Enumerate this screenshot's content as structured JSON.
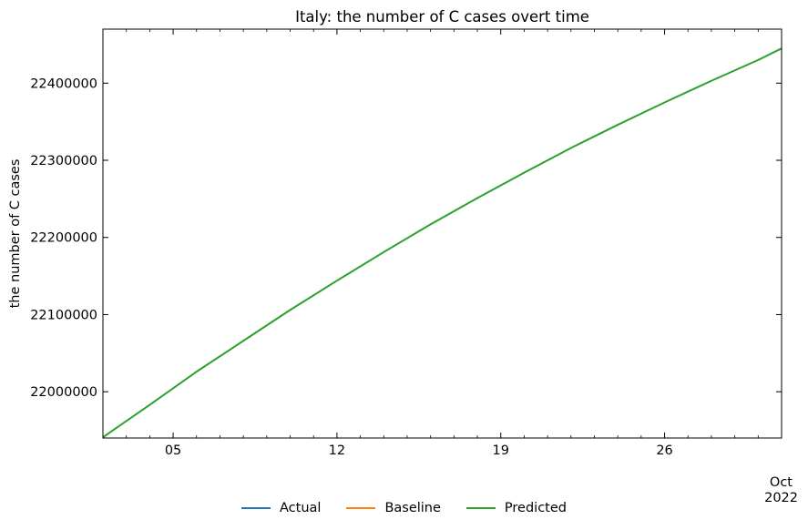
{
  "chart_data": {
    "type": "line",
    "title": "Italy: the number of C cases overt time",
    "xlabel": "",
    "ylabel": "the number of C cases",
    "x_start": "2022-10-02",
    "x_end": "2022-10-31",
    "ylim": [
      21940000,
      22470000
    ],
    "xticks": [
      {
        "date": "2022-10-05",
        "label": "05"
      },
      {
        "date": "2022-10-12",
        "label": "12"
      },
      {
        "date": "2022-10-19",
        "label": "19"
      },
      {
        "date": "2022-10-26",
        "label": "26"
      }
    ],
    "x_offset_label": [
      "Oct",
      "2022"
    ],
    "yticks": [
      22000000,
      22100000,
      22200000,
      22300000,
      22400000
    ],
    "grid": false,
    "legend_position": "bottom-center",
    "series": [
      {
        "name": "Actual",
        "color": "#1f77b4",
        "points": []
      },
      {
        "name": "Baseline",
        "color": "#ff7f0e",
        "points": []
      },
      {
        "name": "Predicted",
        "color": "#2ca02c",
        "points": [
          {
            "x": "2022-10-02",
            "y": 21941000
          },
          {
            "x": "2022-10-04",
            "y": 21983000
          },
          {
            "x": "2022-10-06",
            "y": 22026000
          },
          {
            "x": "2022-10-08",
            "y": 22066000
          },
          {
            "x": "2022-10-10",
            "y": 22106000
          },
          {
            "x": "2022-10-12",
            "y": 22144000
          },
          {
            "x": "2022-10-14",
            "y": 22181000
          },
          {
            "x": "2022-10-16",
            "y": 22217000
          },
          {
            "x": "2022-10-18",
            "y": 22251000
          },
          {
            "x": "2022-10-20",
            "y": 22284000
          },
          {
            "x": "2022-10-22",
            "y": 22316000
          },
          {
            "x": "2022-10-24",
            "y": 22346000
          },
          {
            "x": "2022-10-26",
            "y": 22375000
          },
          {
            "x": "2022-10-28",
            "y": 22403000
          },
          {
            "x": "2022-10-30",
            "y": 22430000
          },
          {
            "x": "2022-10-31",
            "y": 22445000
          }
        ]
      }
    ]
  }
}
